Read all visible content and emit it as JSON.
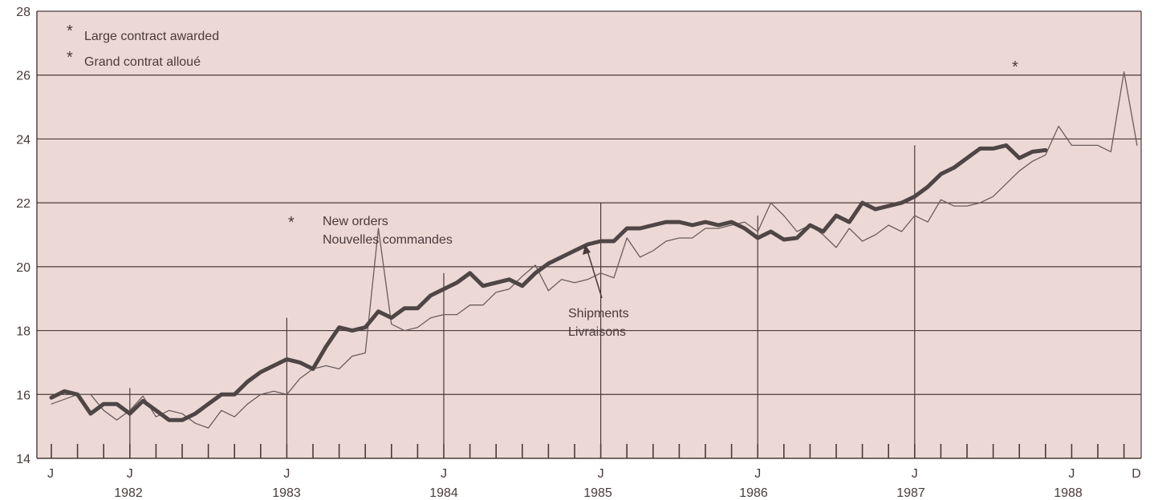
{
  "chart_data": {
    "type": "line",
    "ylim": [
      14,
      28
    ],
    "y_ticks": [
      "14",
      "16",
      "18",
      "20",
      "22",
      "24",
      "26",
      "28"
    ],
    "x_month_labels": [
      "J",
      "J",
      "J",
      "J",
      "J",
      "J",
      "J",
      "J",
      "D"
    ],
    "x_year_labels": [
      "1982",
      "1983",
      "1984",
      "1985",
      "1986",
      "1987",
      "1988"
    ],
    "legend": {
      "star_en": "Large contract awarded",
      "star_fr": "Grand contrat alloué"
    },
    "annotations": {
      "new_orders_en": "New orders",
      "new_orders_fr": "Nouvelles commandes",
      "shipments_en": "Shipments",
      "shipments_fr": "Livraisons",
      "star_symbol": "*"
    },
    "colors": {
      "background": "#ecd9d6",
      "grid": "#4a3a3a",
      "shipments": "#4f4545",
      "new_orders": "#6a5d5d"
    },
    "x_start": "1982-01",
    "series": [
      {
        "name": "New orders",
        "values": [
          15.7,
          15.85,
          16.0,
          16.0,
          15.5,
          15.2,
          15.5,
          15.95,
          15.3,
          15.5,
          15.4,
          15.1,
          14.95,
          15.5,
          15.3,
          15.7,
          16.0,
          16.1,
          16.0,
          16.5,
          16.8,
          16.9,
          16.8,
          17.2,
          17.3,
          21.2,
          18.2,
          18.0,
          18.1,
          18.4,
          18.5,
          18.5,
          18.8,
          18.8,
          19.2,
          19.3,
          19.7,
          20.05,
          19.25,
          19.6,
          19.5,
          19.6,
          19.8,
          19.65,
          20.9,
          20.3,
          20.5,
          20.8,
          20.9,
          20.9,
          21.2,
          21.2,
          21.3,
          21.4,
          21.1,
          22.0,
          21.6,
          21.1,
          21.3,
          21.0,
          20.6,
          21.2,
          20.8,
          21.0,
          21.3,
          21.1,
          21.6,
          21.4,
          22.1,
          21.9,
          21.9,
          22.0,
          22.2,
          22.6,
          23.0,
          23.3,
          23.5,
          24.4,
          23.8,
          23.8,
          23.8,
          23.6,
          26.1,
          23.8
        ]
      },
      {
        "name": "Shipments",
        "values": [
          15.9,
          16.1,
          16.0,
          15.4,
          15.7,
          15.7,
          15.4,
          15.8,
          15.5,
          15.2,
          15.2,
          15.4,
          15.7,
          16.0,
          16.0,
          16.4,
          16.7,
          16.9,
          17.1,
          17.0,
          16.8,
          17.5,
          18.1,
          18.0,
          18.1,
          18.6,
          18.4,
          18.7,
          18.7,
          19.1,
          19.3,
          19.5,
          19.8,
          19.4,
          19.5,
          19.6,
          19.4,
          19.8,
          20.1,
          20.3,
          20.5,
          20.7,
          20.8,
          20.8,
          21.2,
          21.2,
          21.3,
          21.4,
          21.4,
          21.3,
          21.4,
          21.3,
          21.4,
          21.2,
          20.9,
          21.1,
          20.85,
          20.9,
          21.3,
          21.1,
          21.6,
          21.4,
          22.0,
          21.8,
          21.9,
          22.0,
          22.2,
          22.5,
          22.9,
          23.1,
          23.4,
          23.7,
          23.7,
          23.8,
          23.4,
          23.6,
          23.65
        ]
      }
    ]
  }
}
